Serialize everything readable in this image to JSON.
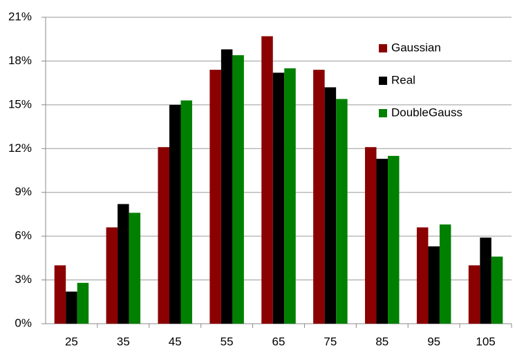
{
  "chart_data": {
    "type": "bar",
    "categories": [
      "25",
      "35",
      "45",
      "55",
      "65",
      "75",
      "85",
      "95",
      "105"
    ],
    "series": [
      {
        "name": "Gaussian",
        "color": "#8b0000",
        "values": [
          4.0,
          6.6,
          12.1,
          17.4,
          19.7,
          17.4,
          12.1,
          6.6,
          4.0
        ]
      },
      {
        "name": "Real",
        "color": "#000000",
        "values": [
          2.2,
          8.2,
          15.0,
          18.8,
          17.2,
          16.2,
          11.3,
          5.3,
          5.9
        ]
      },
      {
        "name": "DoubleGauss",
        "color": "#008000",
        "values": [
          2.8,
          7.6,
          15.3,
          18.4,
          17.5,
          15.4,
          11.5,
          6.8,
          4.6
        ]
      }
    ],
    "ylim": [
      0,
      21
    ],
    "yticks": [
      {
        "value": 0,
        "label": "0%"
      },
      {
        "value": 3,
        "label": "3%"
      },
      {
        "value": 6,
        "label": "6%"
      },
      {
        "value": 9,
        "label": "9%"
      },
      {
        "value": 12,
        "label": "12%"
      },
      {
        "value": 15,
        "label": "15%"
      },
      {
        "value": 18,
        "label": "18%"
      },
      {
        "value": 21,
        "label": "21%"
      }
    ],
    "grid": true,
    "legend": "upper right"
  }
}
